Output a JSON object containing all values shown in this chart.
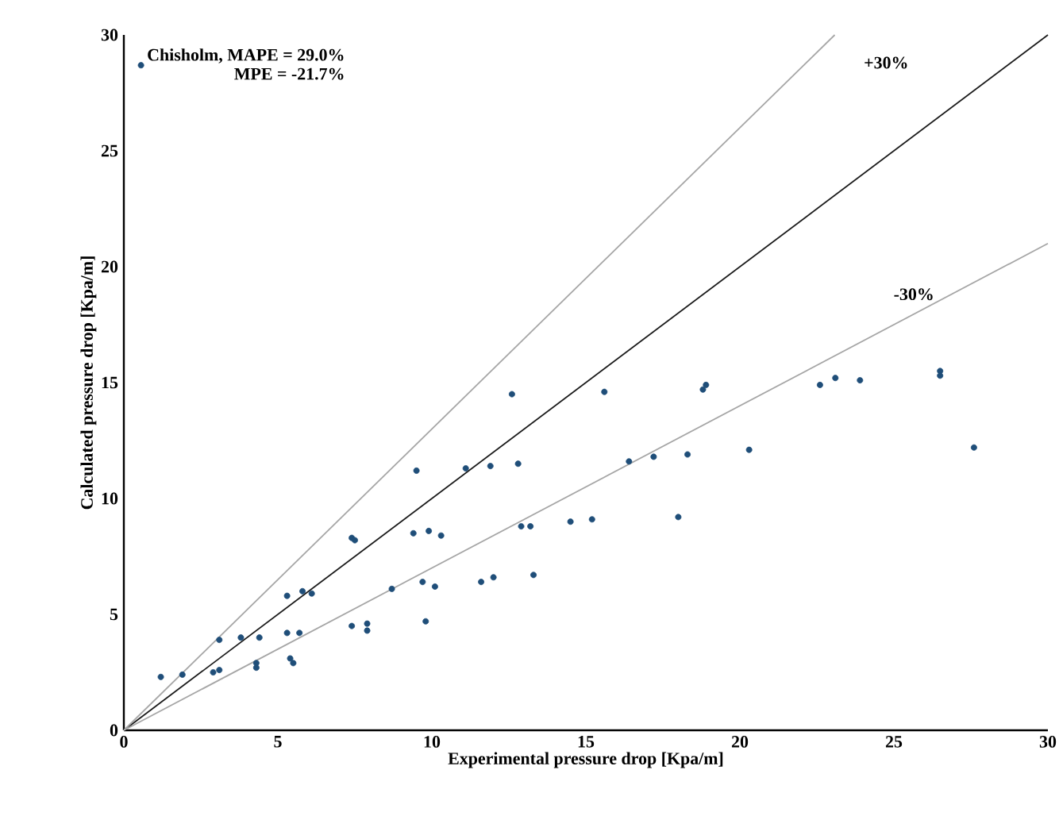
{
  "chart_data": {
    "type": "scatter",
    "xlabel": "Experimental pressure drop [Kpa/m]",
    "ylabel": "Calculated pressure drop [Kpa/m]",
    "xlim": [
      0,
      30
    ],
    "ylim": [
      0,
      30
    ],
    "xticks": [
      0,
      5,
      10,
      15,
      20,
      25,
      30
    ],
    "yticks": [
      0,
      5,
      10,
      15,
      20,
      25,
      30
    ],
    "legend": "top left",
    "series": [
      {
        "name": "Chisholm, MAPE = 29.0%",
        "color": "#1f4e79",
        "marker": "circle",
        "x": [
          1.2,
          1.9,
          2.9,
          3.1,
          3.1,
          3.8,
          4.3,
          4.3,
          4.4,
          5.3,
          5.3,
          5.4,
          5.5,
          5.7,
          5.8,
          6.1,
          7.4,
          7.4,
          7.5,
          7.9,
          7.9,
          8.7,
          9.4,
          9.5,
          9.7,
          9.8,
          9.9,
          10.1,
          10.3,
          11.1,
          11.6,
          11.9,
          12.0,
          12.6,
          12.8,
          12.9,
          13.2,
          13.3,
          14.5,
          15.2,
          15.6,
          16.4,
          17.2,
          18.0,
          18.3,
          18.8,
          18.9,
          20.3,
          22.6,
          23.1,
          23.9,
          26.5,
          26.5,
          27.6
        ],
        "values": [
          2.3,
          2.4,
          2.5,
          2.6,
          3.9,
          4.0,
          2.7,
          2.9,
          4.0,
          5.8,
          4.2,
          3.1,
          2.9,
          4.2,
          6.0,
          5.9,
          8.3,
          4.5,
          8.2,
          4.6,
          4.3,
          6.1,
          8.5,
          11.2,
          6.4,
          4.7,
          8.6,
          6.2,
          8.4,
          11.3,
          6.4,
          11.4,
          6.6,
          14.5,
          11.5,
          8.8,
          8.8,
          6.7,
          9.0,
          9.1,
          14.6,
          11.6,
          11.8,
          9.2,
          11.9,
          14.7,
          14.9,
          12.1,
          14.9,
          15.2,
          15.1,
          15.5,
          15.3,
          12.2
        ]
      },
      {
        "type": "line",
        "marker": "none",
        "color": "#1a1a1a",
        "x": [
          0,
          30
        ],
        "values": [
          0,
          30
        ]
      },
      {
        "type": "line",
        "marker": "none",
        "color": "#a6a6a6",
        "x": [
          0,
          23.08
        ],
        "values": [
          0,
          30
        ]
      },
      {
        "type": "line",
        "marker": "none",
        "color": "#a6a6a6",
        "x": [
          0,
          30
        ],
        "values": [
          0,
          21
        ]
      }
    ],
    "annotations": [
      "+30%",
      "-30%",
      "MPE = -21.7%"
    ]
  }
}
